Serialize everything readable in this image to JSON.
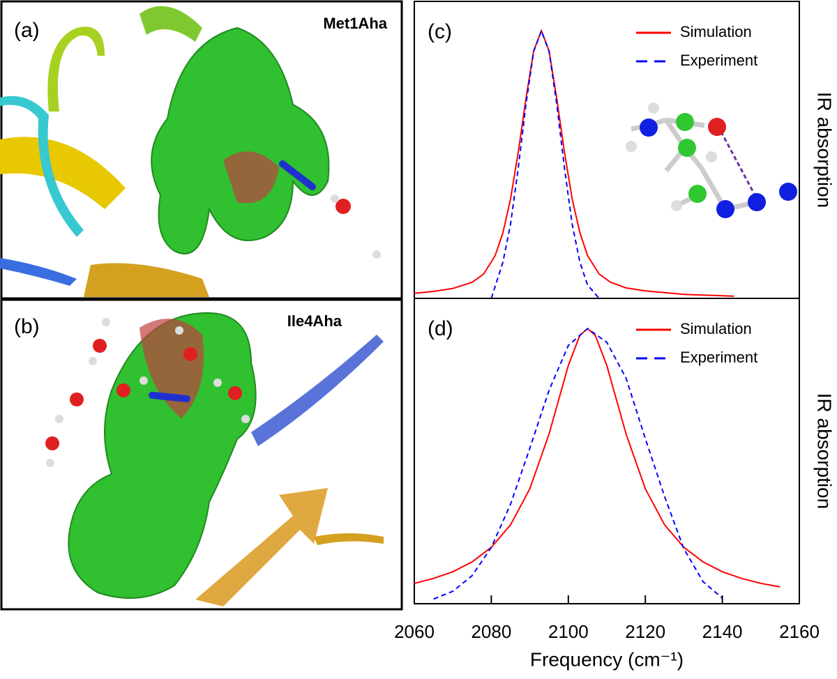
{
  "panels": [
    {
      "label": "(a)",
      "name": "Met1Aha"
    },
    {
      "label": "(b)",
      "name": "Ile4Aha"
    }
  ],
  "chart_data": [
    {
      "type": "line",
      "title": "(c)",
      "ylabel": "IR absorption",
      "xlim": [
        2060,
        2160
      ],
      "ylim": [
        0,
        1.11
      ],
      "legend": "upper right",
      "series": [
        {
          "name": "Simulation",
          "color": "#ff0000",
          "style": "solid",
          "x": [
            2060,
            2065,
            2070,
            2075,
            2078,
            2081,
            2083,
            2085,
            2087,
            2089,
            2091,
            2093,
            2095,
            2097,
            2099,
            2101,
            2103,
            2105,
            2108,
            2111,
            2115,
            2120,
            2130,
            2143
          ],
          "values": [
            0.019,
            0.026,
            0.037,
            0.06,
            0.091,
            0.16,
            0.245,
            0.372,
            0.546,
            0.747,
            0.925,
            1,
            0.925,
            0.747,
            0.546,
            0.372,
            0.245,
            0.16,
            0.091,
            0.06,
            0.039,
            0.028,
            0.015,
            0.008
          ]
        },
        {
          "name": "Experiment",
          "color": "#0000ff",
          "style": "dashed",
          "x": [
            2080,
            2083,
            2085,
            2087,
            2089,
            2091,
            2093,
            2095,
            2097,
            2099,
            2101,
            2103,
            2105,
            2108
          ],
          "values": [
            0.0,
            0.135,
            0.278,
            0.487,
            0.726,
            0.923,
            1,
            0.923,
            0.726,
            0.487,
            0.278,
            0.135,
            0.05,
            0.0
          ]
        }
      ]
    },
    {
      "type": "line",
      "title": "(d)",
      "ylabel": "IR absorption",
      "xlabel": "Frequency (cm⁻¹)",
      "xlim": [
        2060,
        2160
      ],
      "ylim": [
        0,
        1.11
      ],
      "xticks": [
        2060,
        2080,
        2100,
        2120,
        2140,
        2160
      ],
      "legend": "upper right",
      "series": [
        {
          "name": "Simulation",
          "color": "#ff0000",
          "style": "solid",
          "x": [
            2060,
            2065,
            2070,
            2075,
            2080,
            2085,
            2090,
            2095,
            2100,
            2103,
            2105,
            2107,
            2110,
            2115,
            2120,
            2125,
            2130,
            2135,
            2140,
            2145,
            2150,
            2155
          ],
          "values": [
            0.074,
            0.092,
            0.116,
            0.152,
            0.205,
            0.287,
            0.418,
            0.617,
            0.866,
            0.976,
            1,
            0.976,
            0.866,
            0.617,
            0.418,
            0.287,
            0.205,
            0.152,
            0.116,
            0.092,
            0.074,
            0.061
          ]
        },
        {
          "name": "Experiment",
          "color": "#0000ff",
          "style": "dashed",
          "x": [
            2065,
            2070,
            2075,
            2080,
            2085,
            2090,
            2095,
            2100,
            2105,
            2110,
            2115,
            2120,
            2125,
            2130,
            2135,
            2140
          ],
          "values": [
            0.017,
            0.045,
            0.102,
            0.205,
            0.362,
            0.565,
            0.776,
            0.939,
            1,
            0.95,
            0.82,
            0.6,
            0.39,
            0.2,
            0.08,
            0.02
          ]
        }
      ]
    }
  ]
}
